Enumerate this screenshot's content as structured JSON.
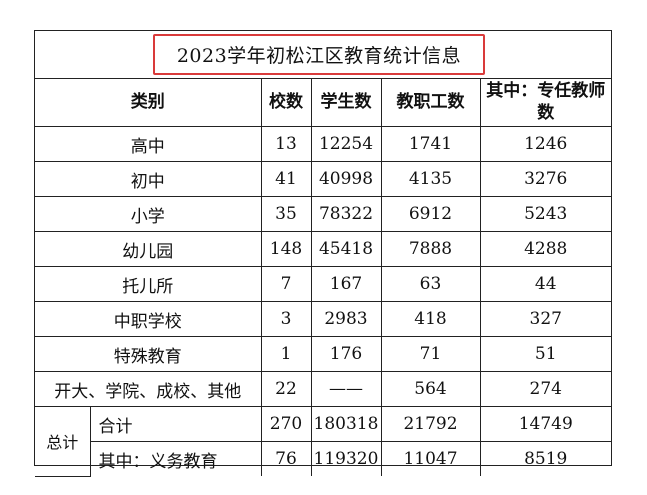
{
  "title": "2023学年初松江区教育统计信息",
  "colors": {
    "highlight_border": "#d93a3a",
    "grid": "#222222"
  },
  "headers": {
    "category": "类别",
    "schools": "校数",
    "students": "学生数",
    "staff": "教职工数",
    "teachers": "其中：专任教师数"
  },
  "rows": [
    {
      "category": "高中",
      "schools": "13",
      "students": "12254",
      "staff": "1741",
      "teachers": "1246"
    },
    {
      "category": "初中",
      "schools": "41",
      "students": "40998",
      "staff": "4135",
      "teachers": "3276"
    },
    {
      "category": "小学",
      "schools": "35",
      "students": "78322",
      "staff": "6912",
      "teachers": "5243"
    },
    {
      "category": "幼儿园",
      "schools": "148",
      "students": "45418",
      "staff": "7888",
      "teachers": "4288"
    },
    {
      "category": "托儿所",
      "schools": "7",
      "students": "167",
      "staff": "63",
      "teachers": "44"
    },
    {
      "category": "中职学校",
      "schools": "3",
      "students": "2983",
      "staff": "418",
      "teachers": "327"
    },
    {
      "category": "特殊教育",
      "schools": "1",
      "students": "176",
      "staff": "71",
      "teachers": "51"
    },
    {
      "category": "开大、学院、成校、其他",
      "schools": "22",
      "students": "——",
      "staff": "564",
      "teachers": "274"
    }
  ],
  "total": {
    "label": "总计",
    "rows": [
      {
        "category": "合计",
        "schools": "270",
        "students": "180318",
        "staff": "21792",
        "teachers": "14749"
      },
      {
        "category": "其中：义务教育",
        "schools": "76",
        "students": "119320",
        "staff": "11047",
        "teachers": "8519"
      }
    ]
  }
}
